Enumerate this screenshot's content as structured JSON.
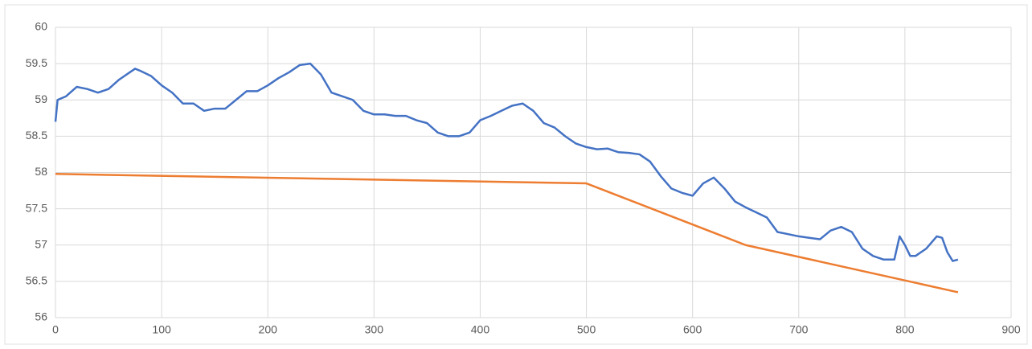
{
  "chart_data": {
    "type": "line",
    "xlim": [
      0,
      900
    ],
    "xticks": [
      0,
      100,
      200,
      300,
      400,
      500,
      600,
      700,
      800,
      900
    ],
    "ylim": [
      56,
      60
    ],
    "yticks": [
      56,
      56.5,
      57,
      57.5,
      58,
      58.5,
      59,
      59.5,
      60
    ],
    "grid": true,
    "series": [
      {
        "color": "#4472c4",
        "x": [
          0,
          2,
          10,
          20,
          30,
          40,
          50,
          60,
          70,
          75,
          80,
          90,
          100,
          110,
          120,
          130,
          140,
          150,
          160,
          170,
          180,
          190,
          200,
          210,
          220,
          230,
          240,
          250,
          260,
          270,
          280,
          290,
          300,
          310,
          320,
          330,
          340,
          350,
          360,
          370,
          380,
          390,
          400,
          410,
          420,
          430,
          440,
          450,
          460,
          470,
          480,
          490,
          500,
          510,
          520,
          530,
          540,
          550,
          560,
          570,
          580,
          590,
          600,
          610,
          620,
          630,
          640,
          650,
          660,
          670,
          680,
          690,
          700,
          710,
          720,
          730,
          740,
          750,
          760,
          770,
          780,
          790,
          795,
          800,
          805,
          810,
          820,
          830,
          835,
          840,
          845,
          850
        ],
        "values": [
          58.7,
          59.0,
          59.05,
          59.18,
          59.15,
          59.1,
          59.15,
          59.28,
          59.38,
          59.43,
          59.4,
          59.33,
          59.2,
          59.1,
          58.95,
          58.95,
          58.85,
          58.88,
          58.88,
          59.0,
          59.12,
          59.12,
          59.2,
          59.3,
          59.38,
          59.48,
          59.5,
          59.35,
          59.1,
          59.05,
          59.0,
          58.85,
          58.8,
          58.8,
          58.78,
          58.78,
          58.72,
          58.68,
          58.55,
          58.5,
          58.5,
          58.55,
          58.72,
          58.78,
          58.85,
          58.92,
          58.95,
          58.85,
          58.68,
          58.62,
          58.5,
          58.4,
          58.35,
          58.32,
          58.33,
          58.28,
          58.27,
          58.25,
          58.15,
          57.95,
          57.78,
          57.72,
          57.68,
          57.85,
          57.93,
          57.78,
          57.6,
          57.52,
          57.45,
          57.38,
          57.18,
          57.15,
          57.12,
          57.1,
          57.08,
          57.2,
          57.25,
          57.18,
          56.95,
          56.85,
          56.8,
          56.8,
          57.12,
          57.0,
          56.85,
          56.85,
          56.95,
          57.12,
          57.1,
          56.9,
          56.78,
          56.8
        ]
      },
      {
        "color": "#ed7d31",
        "x": [
          0,
          500,
          650,
          850
        ],
        "values": [
          57.98,
          57.85,
          57.0,
          56.35
        ]
      }
    ]
  }
}
